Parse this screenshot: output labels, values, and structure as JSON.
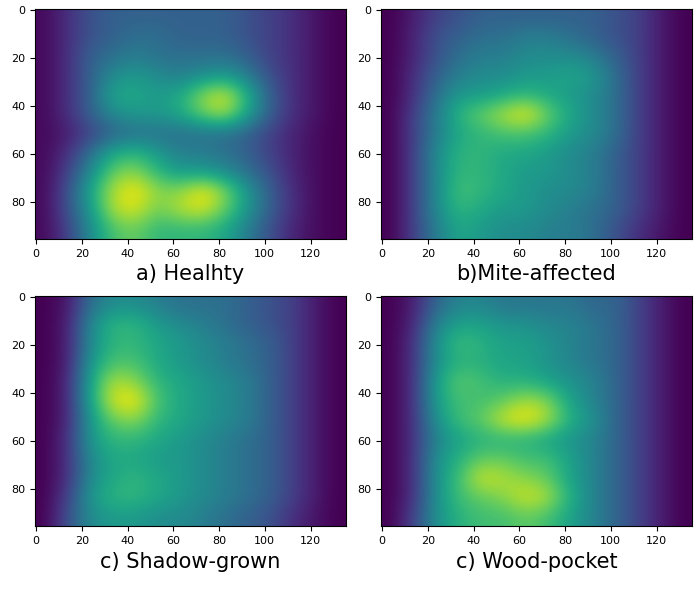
{
  "chart_data": [
    {
      "type": "heatmap",
      "xlabel": "a) Healhty",
      "xlim": [
        -0.5,
        135.5
      ],
      "ylim": [
        95.5,
        -0.5
      ],
      "xticks": [
        0,
        20,
        40,
        60,
        80,
        100,
        120
      ],
      "yticks": [
        0,
        20,
        40,
        60,
        80
      ],
      "cells": [
        [
          0.05,
          0.15,
          0.25,
          0.3,
          0.3,
          0.3,
          0.3,
          0.3,
          0.3,
          0.25,
          0.2,
          0.15,
          0.08,
          0.03
        ],
        [
          0.05,
          0.15,
          0.25,
          0.3,
          0.35,
          0.35,
          0.3,
          0.3,
          0.3,
          0.25,
          0.2,
          0.15,
          0.08,
          0.03
        ],
        [
          0.05,
          0.15,
          0.3,
          0.35,
          0.4,
          0.35,
          0.35,
          0.35,
          0.35,
          0.3,
          0.2,
          0.15,
          0.08,
          0.03
        ],
        [
          0.05,
          0.15,
          0.3,
          0.45,
          0.5,
          0.45,
          0.4,
          0.45,
          0.5,
          0.4,
          0.25,
          0.15,
          0.08,
          0.03
        ],
        [
          0.05,
          0.15,
          0.3,
          0.55,
          0.55,
          0.5,
          0.55,
          0.75,
          0.85,
          0.6,
          0.3,
          0.15,
          0.08,
          0.03
        ],
        [
          0.05,
          0.15,
          0.3,
          0.45,
          0.5,
          0.5,
          0.55,
          0.7,
          0.8,
          0.55,
          0.3,
          0.15,
          0.08,
          0.03
        ],
        [
          0.05,
          0.1,
          0.2,
          0.3,
          0.35,
          0.35,
          0.35,
          0.35,
          0.35,
          0.3,
          0.2,
          0.12,
          0.06,
          0.03
        ],
        [
          0.05,
          0.15,
          0.35,
          0.55,
          0.6,
          0.5,
          0.4,
          0.4,
          0.35,
          0.3,
          0.2,
          0.12,
          0.06,
          0.03
        ],
        [
          0.05,
          0.2,
          0.45,
          0.7,
          0.75,
          0.6,
          0.5,
          0.5,
          0.45,
          0.35,
          0.25,
          0.12,
          0.06,
          0.03
        ],
        [
          0.05,
          0.25,
          0.55,
          0.8,
          0.9,
          0.75,
          0.75,
          0.9,
          0.75,
          0.5,
          0.3,
          0.15,
          0.06,
          0.03
        ],
        [
          0.05,
          0.25,
          0.5,
          0.8,
          0.85,
          0.7,
          0.8,
          0.85,
          0.7,
          0.5,
          0.3,
          0.15,
          0.06,
          0.03
        ],
        [
          0.05,
          0.2,
          0.45,
          0.65,
          0.7,
          0.6,
          0.6,
          0.6,
          0.55,
          0.4,
          0.25,
          0.12,
          0.06,
          0.03
        ]
      ]
    },
    {
      "type": "heatmap",
      "xlabel": "b)Mite-affected",
      "xlim": [
        -0.5,
        135.5
      ],
      "ylim": [
        95.5,
        -0.5
      ],
      "xticks": [
        0,
        20,
        40,
        60,
        80,
        100,
        120
      ],
      "yticks": [
        0,
        20,
        40,
        60,
        80
      ],
      "cells": [
        [
          0.03,
          0.1,
          0.2,
          0.25,
          0.3,
          0.3,
          0.3,
          0.3,
          0.3,
          0.3,
          0.25,
          0.2,
          0.1,
          0.03
        ],
        [
          0.03,
          0.12,
          0.25,
          0.3,
          0.35,
          0.35,
          0.4,
          0.4,
          0.35,
          0.3,
          0.25,
          0.2,
          0.1,
          0.03
        ],
        [
          0.03,
          0.12,
          0.25,
          0.35,
          0.4,
          0.4,
          0.45,
          0.45,
          0.45,
          0.4,
          0.3,
          0.2,
          0.1,
          0.03
        ],
        [
          0.03,
          0.15,
          0.3,
          0.4,
          0.45,
          0.45,
          0.5,
          0.5,
          0.55,
          0.5,
          0.35,
          0.2,
          0.1,
          0.03
        ],
        [
          0.03,
          0.15,
          0.35,
          0.5,
          0.5,
          0.55,
          0.6,
          0.55,
          0.5,
          0.45,
          0.35,
          0.2,
          0.1,
          0.03
        ],
        [
          0.03,
          0.2,
          0.4,
          0.6,
          0.7,
          0.8,
          0.9,
          0.7,
          0.55,
          0.45,
          0.35,
          0.2,
          0.1,
          0.03
        ],
        [
          0.03,
          0.2,
          0.4,
          0.55,
          0.6,
          0.65,
          0.65,
          0.6,
          0.5,
          0.45,
          0.35,
          0.2,
          0.1,
          0.03
        ],
        [
          0.03,
          0.2,
          0.45,
          0.6,
          0.6,
          0.55,
          0.55,
          0.5,
          0.45,
          0.4,
          0.3,
          0.2,
          0.1,
          0.03
        ],
        [
          0.03,
          0.2,
          0.45,
          0.6,
          0.6,
          0.55,
          0.5,
          0.5,
          0.45,
          0.4,
          0.3,
          0.2,
          0.1,
          0.03
        ],
        [
          0.03,
          0.2,
          0.45,
          0.65,
          0.6,
          0.55,
          0.5,
          0.45,
          0.45,
          0.4,
          0.3,
          0.2,
          0.1,
          0.03
        ],
        [
          0.03,
          0.2,
          0.45,
          0.6,
          0.55,
          0.5,
          0.5,
          0.45,
          0.4,
          0.35,
          0.3,
          0.2,
          0.1,
          0.03
        ],
        [
          0.03,
          0.2,
          0.4,
          0.55,
          0.5,
          0.45,
          0.45,
          0.4,
          0.4,
          0.35,
          0.25,
          0.15,
          0.08,
          0.03
        ]
      ]
    },
    {
      "type": "heatmap",
      "xlabel": "c) Shadow-grown",
      "xlim": [
        -0.5,
        135.5
      ],
      "ylim": [
        95.5,
        -0.5
      ],
      "xticks": [
        0,
        20,
        40,
        60,
        80,
        100,
        120
      ],
      "yticks": [
        0,
        20,
        40,
        60,
        80
      ],
      "cells": [
        [
          0.03,
          0.08,
          0.35,
          0.45,
          0.45,
          0.4,
          0.35,
          0.35,
          0.35,
          0.3,
          0.25,
          0.2,
          0.1,
          0.03
        ],
        [
          0.03,
          0.1,
          0.45,
          0.6,
          0.6,
          0.5,
          0.45,
          0.4,
          0.35,
          0.3,
          0.25,
          0.2,
          0.1,
          0.03
        ],
        [
          0.03,
          0.1,
          0.45,
          0.6,
          0.6,
          0.55,
          0.5,
          0.45,
          0.4,
          0.35,
          0.3,
          0.2,
          0.1,
          0.03
        ],
        [
          0.03,
          0.1,
          0.5,
          0.65,
          0.65,
          0.55,
          0.5,
          0.45,
          0.4,
          0.35,
          0.3,
          0.2,
          0.1,
          0.03
        ],
        [
          0.03,
          0.12,
          0.55,
          0.8,
          0.75,
          0.6,
          0.55,
          0.5,
          0.45,
          0.4,
          0.3,
          0.2,
          0.1,
          0.03
        ],
        [
          0.03,
          0.12,
          0.55,
          0.85,
          0.9,
          0.65,
          0.55,
          0.5,
          0.45,
          0.4,
          0.3,
          0.2,
          0.1,
          0.03
        ],
        [
          0.03,
          0.12,
          0.5,
          0.7,
          0.75,
          0.6,
          0.55,
          0.5,
          0.45,
          0.4,
          0.3,
          0.2,
          0.1,
          0.03
        ],
        [
          0.03,
          0.15,
          0.5,
          0.6,
          0.6,
          0.55,
          0.5,
          0.45,
          0.4,
          0.35,
          0.3,
          0.2,
          0.1,
          0.03
        ],
        [
          0.03,
          0.15,
          0.45,
          0.55,
          0.55,
          0.5,
          0.5,
          0.45,
          0.4,
          0.35,
          0.3,
          0.2,
          0.1,
          0.03
        ],
        [
          0.03,
          0.15,
          0.45,
          0.55,
          0.6,
          0.55,
          0.5,
          0.45,
          0.4,
          0.35,
          0.3,
          0.2,
          0.1,
          0.03
        ],
        [
          0.03,
          0.2,
          0.5,
          0.6,
          0.6,
          0.55,
          0.5,
          0.45,
          0.4,
          0.35,
          0.3,
          0.2,
          0.1,
          0.03
        ],
        [
          0.03,
          0.25,
          0.45,
          0.5,
          0.5,
          0.45,
          0.45,
          0.4,
          0.35,
          0.3,
          0.25,
          0.15,
          0.08,
          0.03
        ]
      ]
    },
    {
      "type": "heatmap",
      "xlabel": "c) Wood-pocket",
      "xlim": [
        -0.5,
        135.5
      ],
      "ylim": [
        95.5,
        -0.5
      ],
      "xticks": [
        0,
        20,
        40,
        60,
        80,
        100,
        120
      ],
      "yticks": [
        0,
        20,
        40,
        60,
        80
      ],
      "cells": [
        [
          0.03,
          0.1,
          0.3,
          0.4,
          0.4,
          0.35,
          0.35,
          0.35,
          0.35,
          0.3,
          0.3,
          0.2,
          0.1,
          0.03
        ],
        [
          0.03,
          0.12,
          0.4,
          0.5,
          0.5,
          0.45,
          0.45,
          0.4,
          0.4,
          0.35,
          0.3,
          0.2,
          0.1,
          0.03
        ],
        [
          0.03,
          0.15,
          0.45,
          0.6,
          0.55,
          0.5,
          0.5,
          0.45,
          0.4,
          0.35,
          0.3,
          0.2,
          0.1,
          0.03
        ],
        [
          0.03,
          0.15,
          0.45,
          0.55,
          0.55,
          0.5,
          0.5,
          0.45,
          0.4,
          0.35,
          0.3,
          0.2,
          0.1,
          0.03
        ],
        [
          0.03,
          0.15,
          0.5,
          0.65,
          0.6,
          0.55,
          0.55,
          0.5,
          0.45,
          0.4,
          0.3,
          0.2,
          0.1,
          0.03
        ],
        [
          0.03,
          0.15,
          0.5,
          0.6,
          0.6,
          0.65,
          0.75,
          0.7,
          0.5,
          0.4,
          0.3,
          0.2,
          0.1,
          0.03
        ],
        [
          0.03,
          0.15,
          0.45,
          0.6,
          0.65,
          0.8,
          0.85,
          0.75,
          0.55,
          0.45,
          0.3,
          0.2,
          0.1,
          0.03
        ],
        [
          0.03,
          0.15,
          0.4,
          0.5,
          0.55,
          0.55,
          0.55,
          0.5,
          0.45,
          0.4,
          0.3,
          0.2,
          0.1,
          0.03
        ],
        [
          0.03,
          0.15,
          0.45,
          0.55,
          0.65,
          0.65,
          0.6,
          0.6,
          0.5,
          0.4,
          0.3,
          0.2,
          0.1,
          0.03
        ],
        [
          0.03,
          0.15,
          0.45,
          0.6,
          0.8,
          0.75,
          0.7,
          0.65,
          0.5,
          0.4,
          0.3,
          0.2,
          0.1,
          0.03
        ],
        [
          0.03,
          0.15,
          0.45,
          0.6,
          0.65,
          0.7,
          0.8,
          0.75,
          0.55,
          0.4,
          0.3,
          0.2,
          0.1,
          0.03
        ],
        [
          0.03,
          0.2,
          0.45,
          0.55,
          0.6,
          0.6,
          0.65,
          0.6,
          0.5,
          0.4,
          0.3,
          0.2,
          0.1,
          0.03
        ]
      ]
    }
  ]
}
